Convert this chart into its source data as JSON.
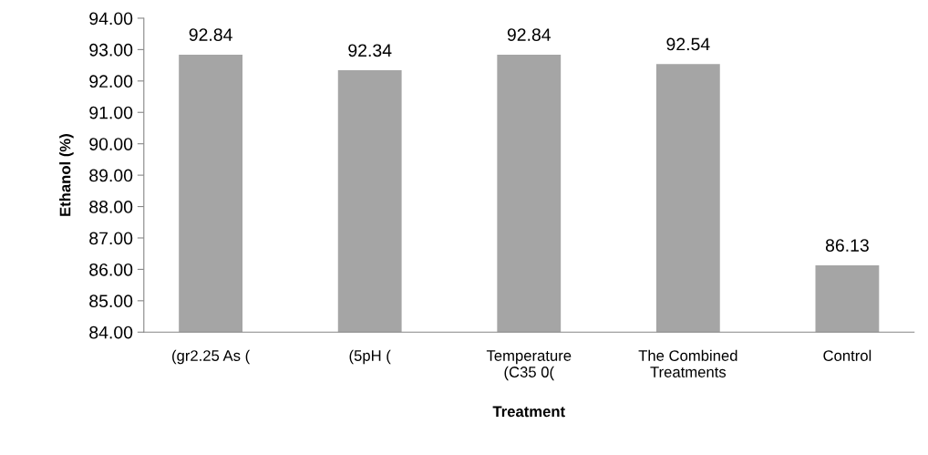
{
  "chart_data": {
    "type": "bar",
    "xlabel": "Treatment",
    "ylabel": "Ethanol (%)",
    "categories": [
      "(gr2.25 As (",
      "(5pH (",
      "Temperature\n(C35 0(",
      "The Combined\nTreatments",
      "Control"
    ],
    "values": [
      92.84,
      92.34,
      92.84,
      92.54,
      86.13
    ],
    "color": "#a5a5a5",
    "data_labels": true,
    "ylim": [
      84,
      94
    ],
    "yticks": [
      {
        "value": 84,
        "label": "84.00"
      },
      {
        "value": 85,
        "label": "85.00"
      },
      {
        "value": 86,
        "label": "86.00"
      },
      {
        "value": 87,
        "label": "87.00"
      },
      {
        "value": 88,
        "label": "88.00"
      },
      {
        "value": 89,
        "label": "89.00"
      },
      {
        "value": 90,
        "label": "90.00"
      },
      {
        "value": 91,
        "label": "91.00"
      },
      {
        "value": 92,
        "label": "92.00"
      },
      {
        "value": 93,
        "label": "93.00"
      },
      {
        "value": 94,
        "label": "94.00"
      }
    ],
    "grid": false
  }
}
